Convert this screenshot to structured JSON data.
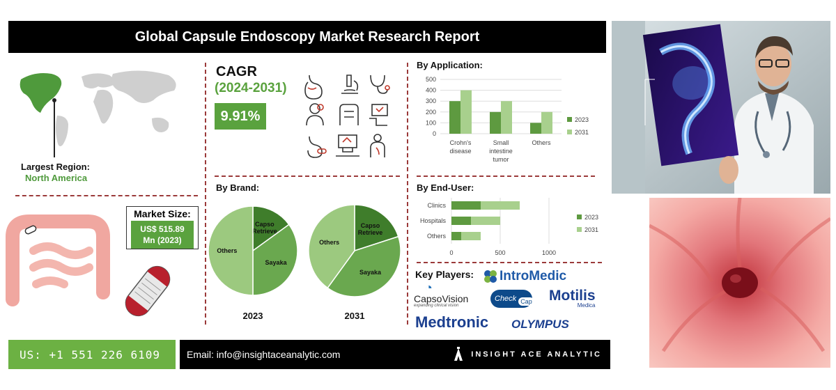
{
  "header": {
    "title": "Global Capsule Endoscopy Market Research Report"
  },
  "region": {
    "label": "Largest Region:",
    "value": "North America"
  },
  "market_size": {
    "label": "Market Size:",
    "value_line1": "US$ 515.89",
    "value_line2": "Mn (2023)"
  },
  "cagr": {
    "title": "CAGR",
    "years": "(2024-2031)",
    "value": "9.91%"
  },
  "sections": {
    "brand": "By Brand:",
    "application": "By Application:",
    "end_user": "By End-User:",
    "key_players": "Key Players:"
  },
  "key_players": {
    "intromedic": "IntroMedic",
    "capsovision": "CapsoVision",
    "capsovision_tagline": "expanding clinical vision",
    "checkcap_check": "Check",
    "checkcap_cap": "Cap",
    "motilis": "Motilis",
    "motilis_sub": "Medica",
    "medtronic": "Medtronic",
    "olympus": "OLYMPUS"
  },
  "footer": {
    "phone": "US: +1 551 226 6109",
    "email": "Email: info@insightaceanalytic.com",
    "brand": "INSIGHT ACE ANALYTIC"
  },
  "colors": {
    "dark_green": "#5e9a40",
    "light_green": "#a8d08d",
    "accent_red": "#9b3a3a"
  },
  "chart_data": [
    {
      "type": "bar",
      "title": "By Application:",
      "categories": [
        "Crohn's disease",
        "Small intestine tumor",
        "Others"
      ],
      "series": [
        {
          "name": "2023",
          "values": [
            300,
            200,
            100
          ]
        },
        {
          "name": "2031",
          "values": [
            400,
            300,
            200
          ]
        }
      ],
      "yticks": [
        0,
        100,
        200,
        300,
        400,
        500
      ],
      "ylim": [
        0,
        500
      ]
    },
    {
      "type": "bar",
      "orientation": "horizontal",
      "stacked": true,
      "title": "By End-User:",
      "categories": [
        "Clinics",
        "Hospitals",
        "Others"
      ],
      "series": [
        {
          "name": "2023",
          "values": [
            300,
            200,
            100
          ]
        },
        {
          "name": "2031",
          "values": [
            400,
            300,
            200
          ]
        }
      ],
      "xticks": [
        0,
        500,
        1000
      ],
      "xlim": [
        0,
        1000
      ]
    },
    {
      "type": "pie",
      "title": "2023",
      "labels": [
        "Capso Retrieve",
        "Sayaka",
        "Others"
      ],
      "values": [
        15,
        35,
        50
      ]
    },
    {
      "type": "pie",
      "title": "2031",
      "labels": [
        "Capso Retrieve",
        "Sayaka",
        "Others"
      ],
      "values": [
        20,
        40,
        40
      ]
    }
  ]
}
